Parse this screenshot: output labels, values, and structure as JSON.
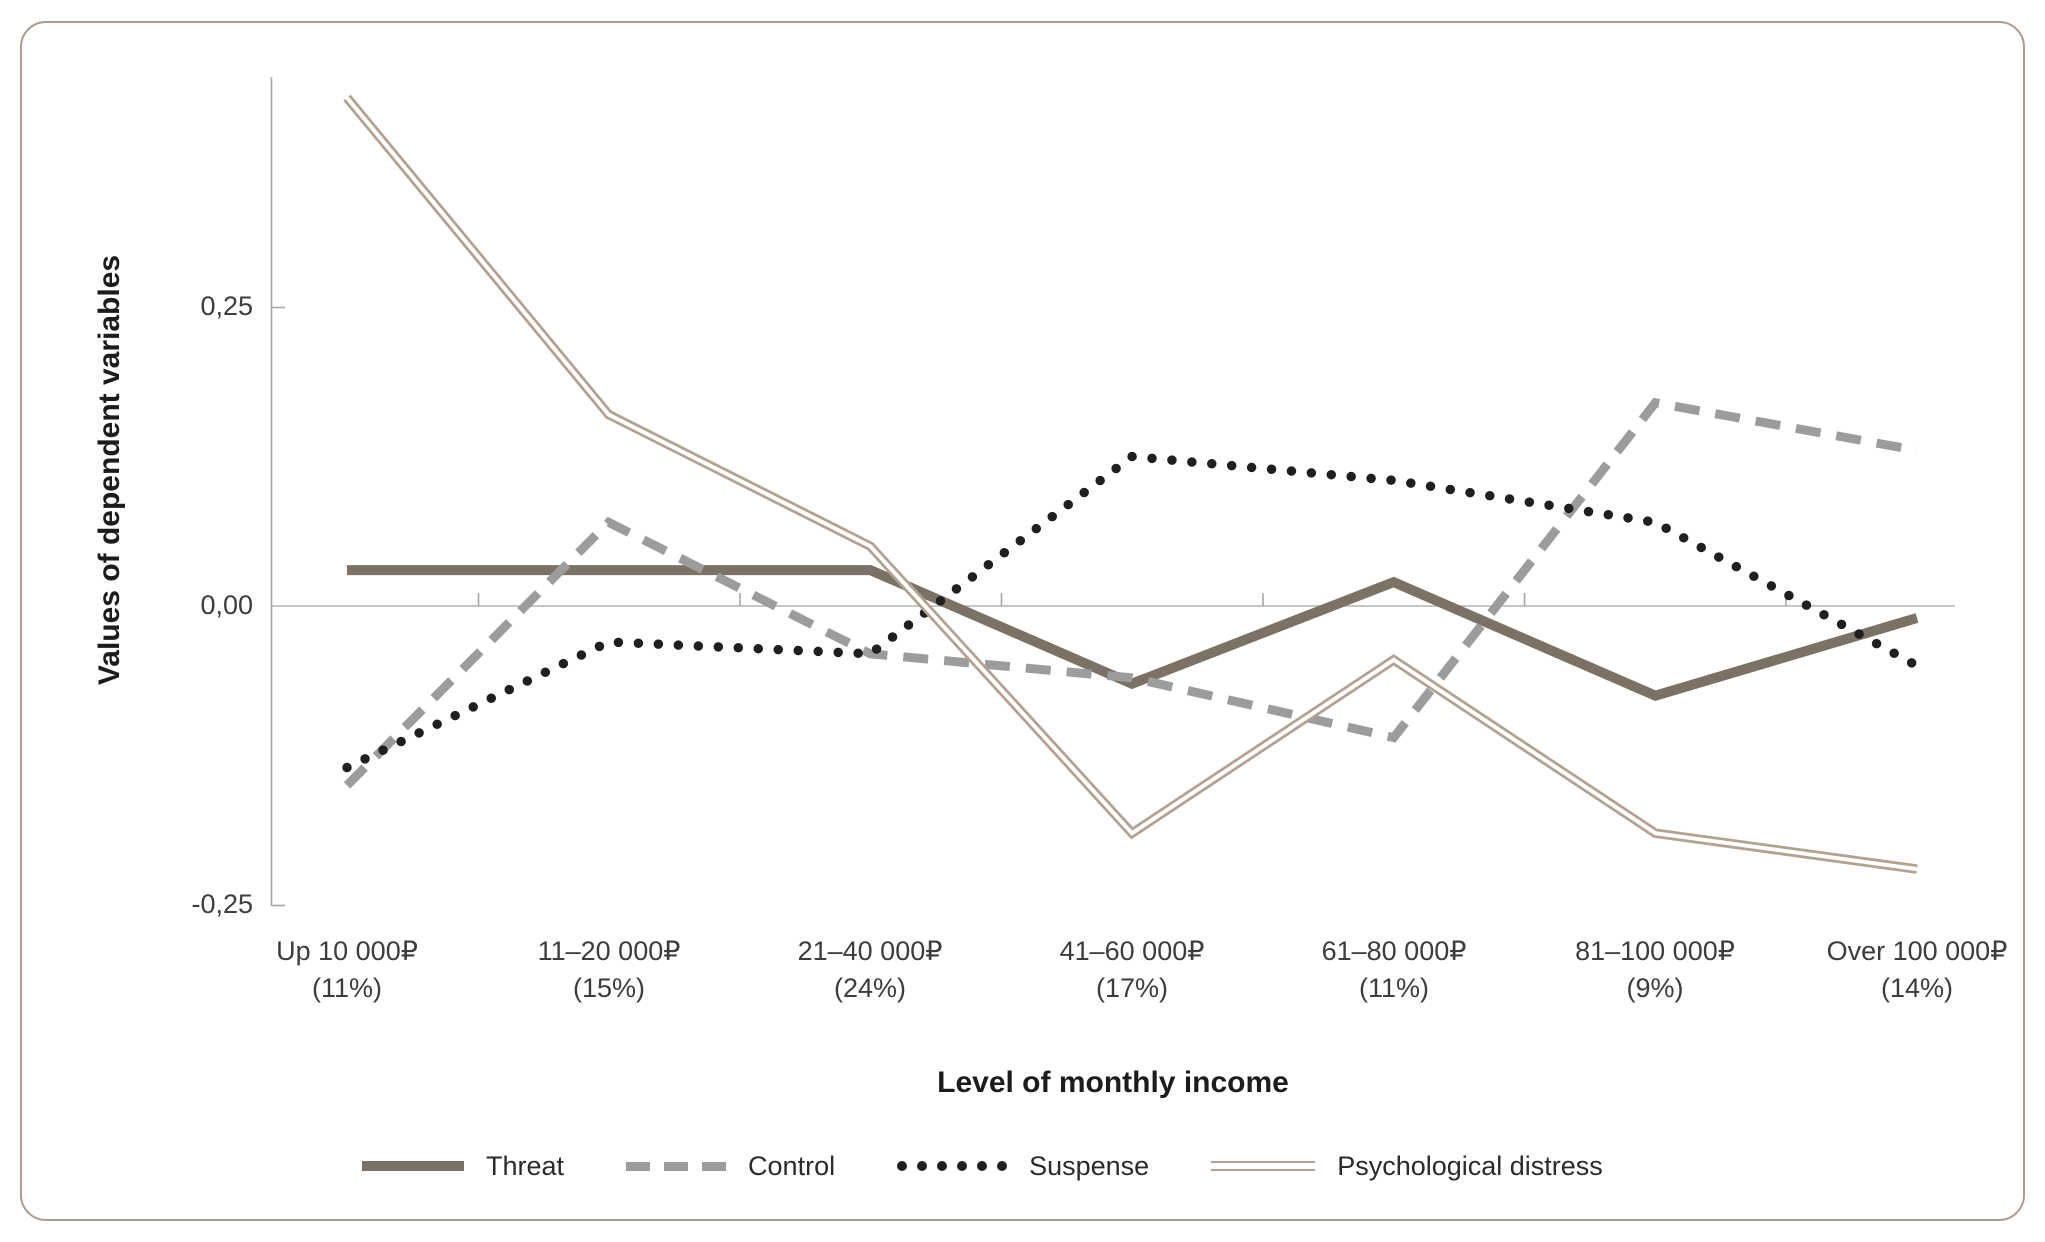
{
  "figure": {
    "frame_border_color": "#ab9c8e",
    "background_color": "#ffffff"
  },
  "chart_data": {
    "type": "line",
    "title": "",
    "xlabel": "Level of monthly income",
    "ylabel": "Values of dependent variables",
    "categories": [
      {
        "range": "Up 10 000₽",
        "share": "(11%)"
      },
      {
        "range": "11–20 000₽",
        "share": "(15%)"
      },
      {
        "range": "21–40 000₽",
        "share": "(24%)"
      },
      {
        "range": "41–60 000₽",
        "share": "(17%)"
      },
      {
        "range": "61–80 000₽",
        "share": "(11%)"
      },
      {
        "range": "81–100 000₽",
        "share": "(9%)"
      },
      {
        "range": "Over 100 000₽",
        "share": "(14%)"
      }
    ],
    "y_ticks": [
      {
        "label": "0,25",
        "value": 0.25
      },
      {
        "label": "0,00",
        "value": 0.0
      },
      {
        "label": "-0,25",
        "value": -0.25
      }
    ],
    "ylim": [
      -0.28,
      0.45
    ],
    "grid": "zero line only",
    "legend_position": "bottom",
    "series": [
      {
        "name": "Threat",
        "style": "solid",
        "color": "#7b7164",
        "values": [
          0.03,
          0.03,
          0.03,
          -0.065,
          0.02,
          -0.075,
          -0.01
        ]
      },
      {
        "name": "Control",
        "style": "dashed",
        "color": "#9c9c9c",
        "values": [
          -0.15,
          0.07,
          -0.04,
          -0.06,
          -0.11,
          0.17,
          0.13
        ]
      },
      {
        "name": "Suspense",
        "style": "dotted",
        "color": "#211f1d",
        "values": [
          -0.135,
          -0.03,
          -0.04,
          0.125,
          0.105,
          0.07,
          -0.05
        ]
      },
      {
        "name": "Psychological distress",
        "style": "double",
        "color": "#b2a292",
        "values": [
          0.425,
          0.16,
          0.05,
          -0.19,
          -0.045,
          -0.19,
          -0.22
        ]
      }
    ]
  }
}
